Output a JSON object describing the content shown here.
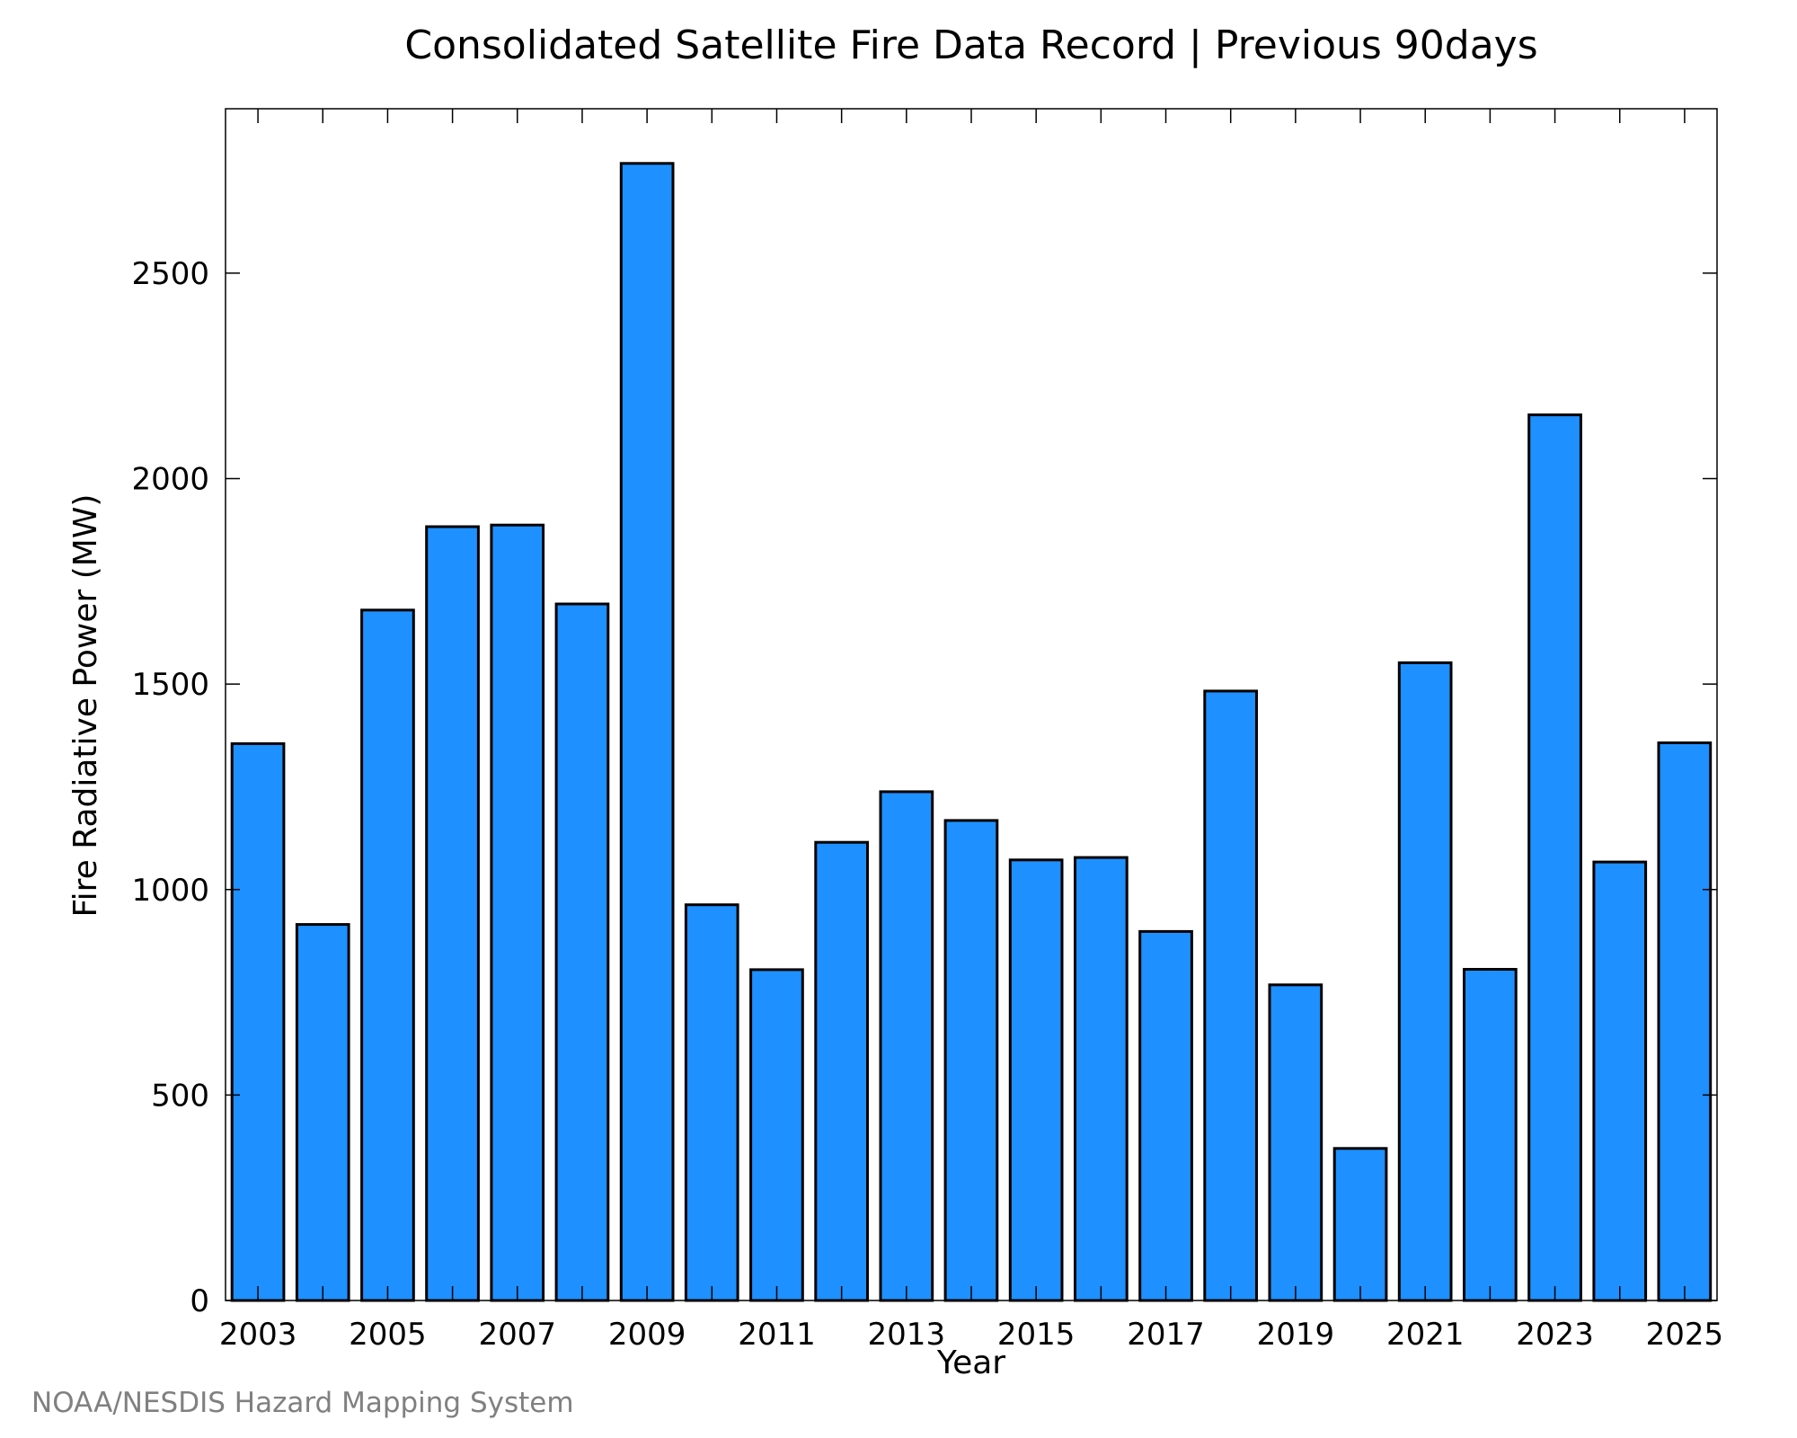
{
  "chart_data": {
    "type": "bar",
    "title": "Consolidated Satellite Fire Data Record | Previous 90days",
    "xlabel": "Year",
    "ylabel": "Fire Radiative Power (MW)",
    "categories": [
      2003,
      2004,
      2005,
      2006,
      2007,
      2008,
      2009,
      2010,
      2011,
      2012,
      2013,
      2014,
      2015,
      2016,
      2017,
      2018,
      2019,
      2020,
      2021,
      2022,
      2023,
      2024,
      2025
    ],
    "values": [
      1355,
      915,
      1680,
      1883,
      1887,
      1695,
      2767,
      963,
      805,
      1115,
      1238,
      1168,
      1072,
      1078,
      898,
      1483,
      768,
      370,
      1552,
      806,
      2155,
      1067,
      1357
    ],
    "x_tick_labels": [
      "2003",
      "2005",
      "2007",
      "2009",
      "2011",
      "2013",
      "2015",
      "2017",
      "2019",
      "2021",
      "2023",
      "2025"
    ],
    "y_ticks": [
      0,
      500,
      1000,
      1500,
      2000,
      2500
    ],
    "ylim": [
      0,
      2900
    ],
    "xlim": [
      2002.5,
      2025.5
    ],
    "bar_color": "#1E90FF",
    "bar_edge_color": "#000000",
    "grid": false,
    "legend": "none"
  },
  "credit": "NOAA/NESDIS Hazard Mapping System"
}
